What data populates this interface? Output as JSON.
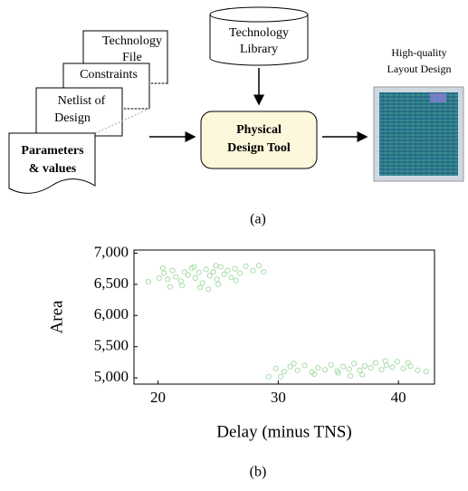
{
  "diagram": {
    "technology_file": [
      "Technology",
      "File"
    ],
    "constraints": [
      "Constraints"
    ],
    "netlist": [
      "Netlist of",
      "Design"
    ],
    "parameters": [
      "Parameters",
      "& values"
    ],
    "technology_library": [
      "Technology",
      "Library"
    ],
    "tool": [
      "Physical",
      "Design Tool"
    ],
    "output": [
      "High-quality",
      "Layout Design"
    ],
    "caption": "(a)"
  },
  "chart_data": {
    "type": "scatter",
    "caption": "(b)",
    "x_label": "Delay (minus TNS)",
    "y_label": "Area",
    "color": "#a9dca9",
    "xlim": [
      18,
      43
    ],
    "ylim": [
      4900,
      7050
    ],
    "xticks": [
      20,
      30,
      40
    ],
    "yticks": [
      {
        "value": 5000,
        "label": "5,000"
      },
      {
        "value": 5500,
        "label": "5,500"
      },
      {
        "value": 6000,
        "label": "6,000"
      },
      {
        "value": 6500,
        "label": "6,500"
      },
      {
        "value": 7000,
        "label": "7,000"
      }
    ],
    "x": [
      19.2,
      20.1,
      20.5,
      20.8,
      21.2,
      21.5,
      21.9,
      22.2,
      22.5,
      22.8,
      23.1,
      23.4,
      23.7,
      24.0,
      24.3,
      24.6,
      24.9,
      25.2,
      25.5,
      25.8,
      26.1,
      26.4,
      26.8,
      27.3,
      27.9,
      28.4,
      22.0,
      23.5,
      24.2,
      21.0,
      25.0,
      26.5,
      28.8,
      20.4,
      23.0,
      24.8,
      29.2,
      29.8,
      30.5,
      31.0,
      31.6,
      32.2,
      32.8,
      33.3,
      33.9,
      34.4,
      34.9,
      35.4,
      35.9,
      36.3,
      36.8,
      37.2,
      37.7,
      38.1,
      38.6,
      39.0,
      39.5,
      39.9,
      40.4,
      41.0,
      41.6,
      42.3,
      30.2,
      33.0,
      35.0,
      37.0,
      38.9,
      40.8,
      31.3,
      36.0
    ],
    "values": [
      6540,
      6600,
      6680,
      6580,
      6720,
      6620,
      6550,
      6700,
      6650,
      6760,
      6600,
      6690,
      6520,
      6740,
      6640,
      6700,
      6580,
      6780,
      6660,
      6720,
      6610,
      6750,
      6680,
      6790,
      6720,
      6800,
      6480,
      6450,
      6420,
      6460,
      6500,
      6560,
      6700,
      6760,
      6780,
      6800,
      5020,
      5150,
      5100,
      5180,
      5120,
      5200,
      5090,
      5160,
      5130,
      5210,
      5110,
      5180,
      5140,
      5230,
      5120,
      5190,
      5160,
      5240,
      5130,
      5200,
      5170,
      5260,
      5150,
      5190,
      5120,
      5100,
      5020,
      5060,
      5080,
      5050,
      5270,
      5240,
      5230,
      5030
    ]
  }
}
